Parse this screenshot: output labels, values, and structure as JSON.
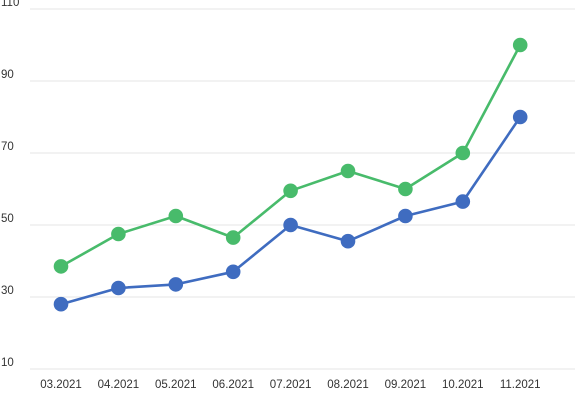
{
  "chart_data": {
    "type": "line",
    "title": "",
    "xlabel": "",
    "ylabel": "",
    "categories": [
      "03.2021",
      "04.2021",
      "05.2021",
      "06.2021",
      "07.2021",
      "08.2021",
      "09.2021",
      "10.2021",
      "11.2021"
    ],
    "y_ticks": [
      10,
      30,
      50,
      70,
      90,
      110
    ],
    "ylim": [
      10,
      110
    ],
    "grid": true,
    "legend": "none",
    "series": [
      {
        "values": [
          38.5,
          47.5,
          52.5,
          46.5,
          59.5,
          65,
          60,
          70,
          100
        ],
        "color": "#48bb6b"
      },
      {
        "values": [
          28,
          32.5,
          33.5,
          37,
          50,
          45.5,
          52.5,
          56.5,
          80
        ],
        "color": "#3f6cc0"
      }
    ]
  }
}
